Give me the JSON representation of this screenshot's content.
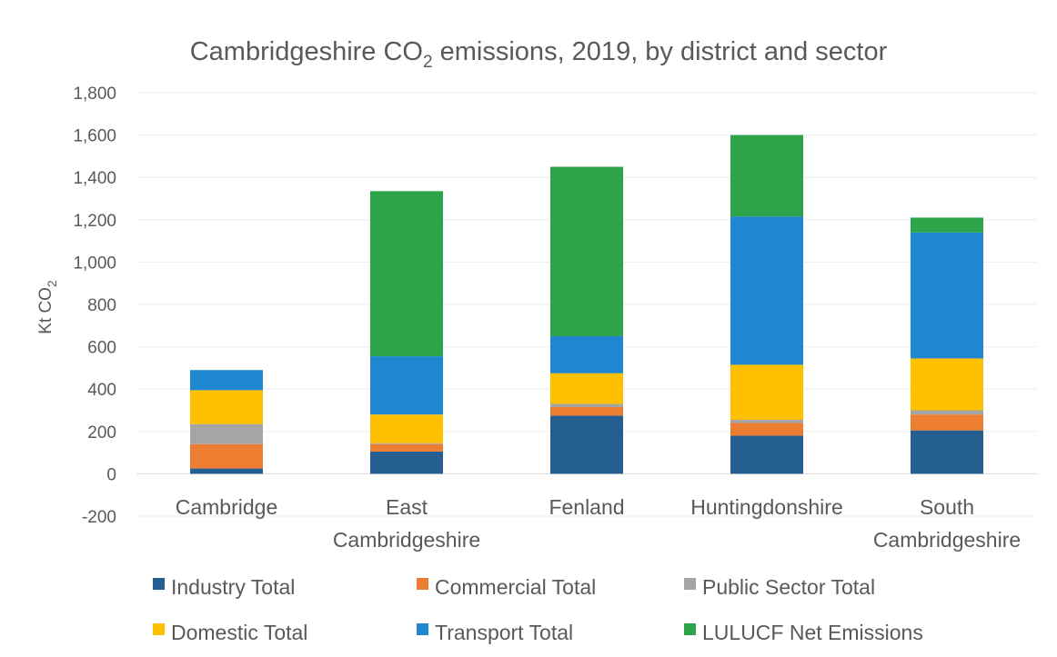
{
  "chart_data": {
    "type": "bar",
    "stacked": true,
    "title": "Cambridgeshire CO",
    "title_subscript": "2",
    "title_rest": " emissions, 2019, by district and sector",
    "ylabel": "Kt CO",
    "ylabel_subscript": "2",
    "xlabel": "",
    "ylim": [
      -200,
      1800
    ],
    "yticks": [
      1800,
      1600,
      1400,
      1200,
      1000,
      800,
      600,
      400,
      200,
      0,
      -200
    ],
    "ytick_labels": [
      "1,800",
      "1,600",
      "1,400",
      "1,200",
      "1,000",
      "800",
      "600",
      "400",
      "200",
      "0",
      "-200"
    ],
    "grid": true,
    "legend_position": "bottom",
    "categories": [
      "Cambridge",
      "East Cambridgeshire",
      "Fenland",
      "Huntingdonshire",
      "South Cambridgeshire"
    ],
    "category_labels": [
      [
        "Cambridge"
      ],
      [
        "East",
        "Cambridgeshire"
      ],
      [
        "Fenland"
      ],
      [
        "Huntingdonshire"
      ],
      [
        "South",
        "Cambridgeshire"
      ]
    ],
    "series": [
      {
        "name": "Industry Total",
        "color": "#255e91",
        "values": [
          25,
          105,
          275,
          180,
          205
        ]
      },
      {
        "name": "Commercial Total",
        "color": "#ed7d31",
        "values": [
          115,
          35,
          40,
          60,
          75
        ]
      },
      {
        "name": "Public Sector Total",
        "color": "#a5a5a5",
        "values": [
          95,
          5,
          15,
          15,
          20
        ]
      },
      {
        "name": "Domestic Total",
        "color": "#ffc000",
        "values": [
          160,
          135,
          145,
          260,
          245
        ]
      },
      {
        "name": "Transport Total",
        "color": "#1f86d0",
        "values": [
          95,
          275,
          175,
          700,
          595
        ]
      },
      {
        "name": "LULUCF Net Emissions",
        "color": "#2ea44a",
        "values": [
          0,
          780,
          800,
          385,
          70
        ]
      }
    ]
  }
}
